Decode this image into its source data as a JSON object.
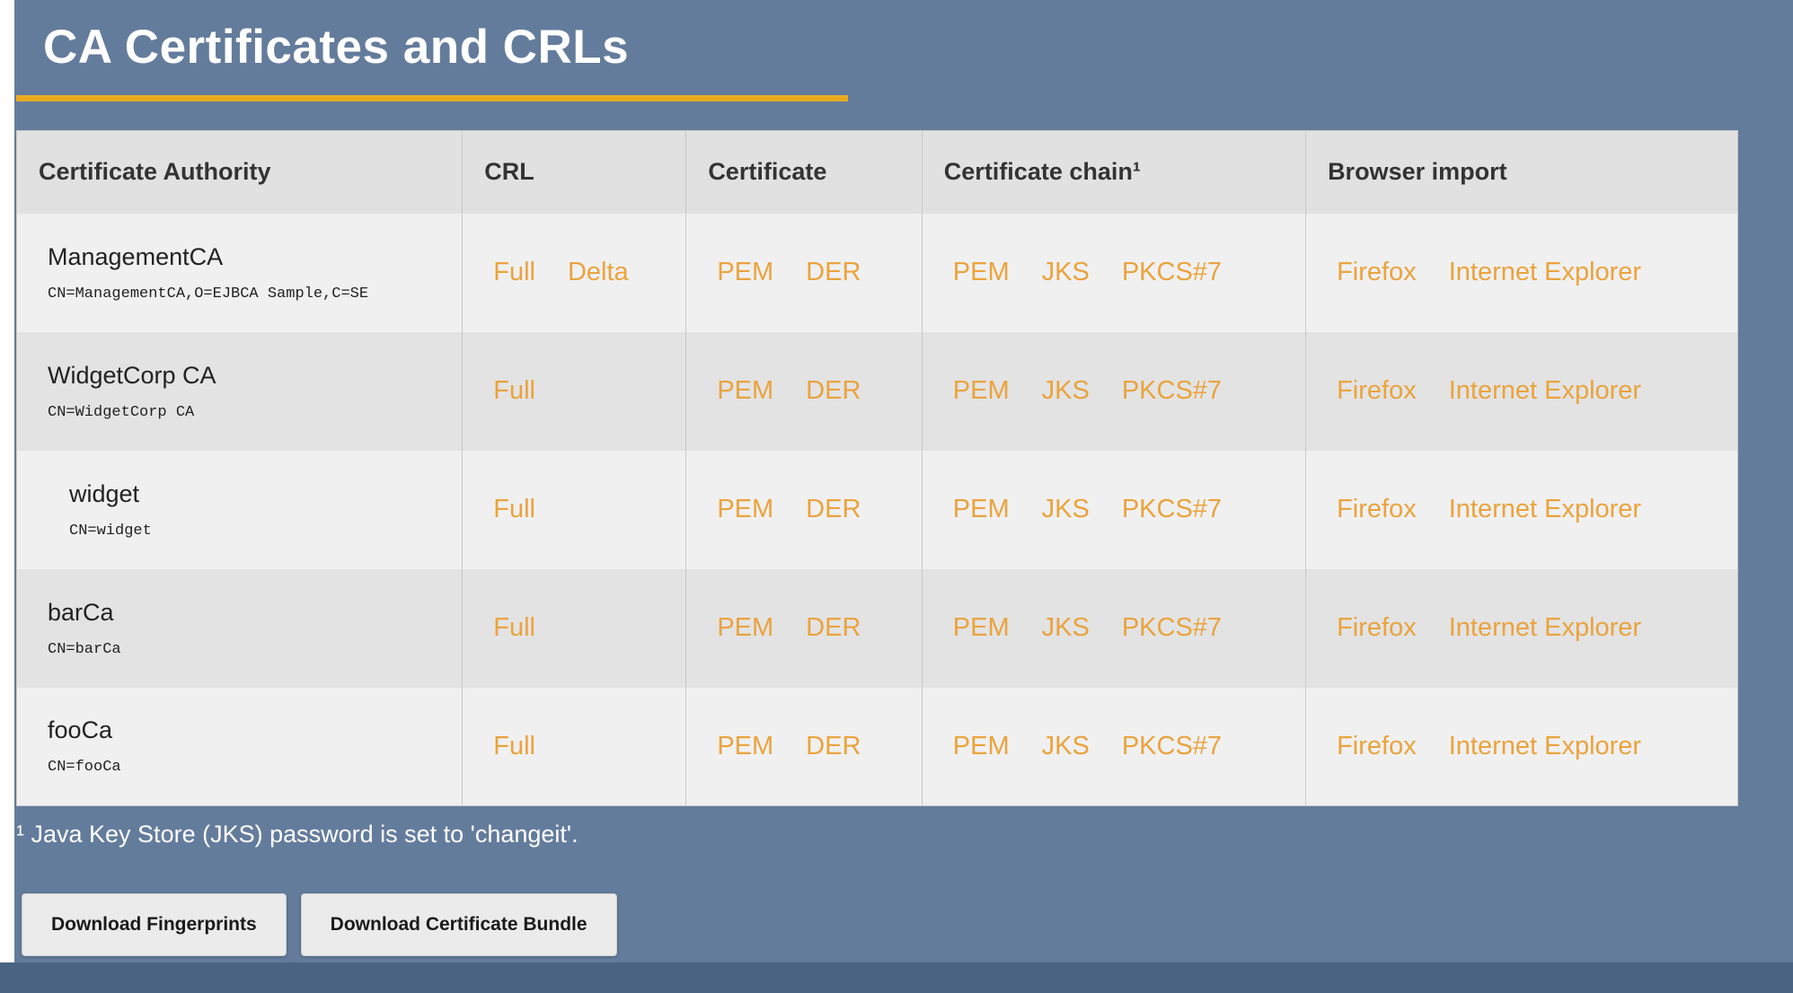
{
  "page": {
    "title": "CA Certificates and CRLs",
    "footnote": "¹ Java Key Store (JKS) password is set to 'changeit'.",
    "buttons": {
      "fingerprints": "Download Fingerprints",
      "bundle": "Download Certificate Bundle"
    }
  },
  "table": {
    "headers": [
      "Certificate Authority",
      "CRL",
      "Certificate",
      "Certificate chain¹",
      "Browser import"
    ],
    "rows": [
      {
        "name": "ManagementCA",
        "dn": "CN=ManagementCA,O=EJBCA Sample,C=SE",
        "indent": false,
        "crl": [
          "Full",
          "Delta"
        ],
        "certificate": [
          "PEM",
          "DER"
        ],
        "chain": [
          "PEM",
          "JKS",
          "PKCS#7"
        ],
        "browser": [
          "Firefox",
          "Internet Explorer"
        ]
      },
      {
        "name": "WidgetCorp CA",
        "dn": "CN=WidgetCorp CA",
        "indent": false,
        "crl": [
          "Full"
        ],
        "certificate": [
          "PEM",
          "DER"
        ],
        "chain": [
          "PEM",
          "JKS",
          "PKCS#7"
        ],
        "browser": [
          "Firefox",
          "Internet Explorer"
        ]
      },
      {
        "name": "widget",
        "dn": "CN=widget",
        "indent": true,
        "crl": [
          "Full"
        ],
        "certificate": [
          "PEM",
          "DER"
        ],
        "chain": [
          "PEM",
          "JKS",
          "PKCS#7"
        ],
        "browser": [
          "Firefox",
          "Internet Explorer"
        ]
      },
      {
        "name": "barCa",
        "dn": "CN=barCa",
        "indent": false,
        "crl": [
          "Full"
        ],
        "certificate": [
          "PEM",
          "DER"
        ],
        "chain": [
          "PEM",
          "JKS",
          "PKCS#7"
        ],
        "browser": [
          "Firefox",
          "Internet Explorer"
        ]
      },
      {
        "name": "fooCa",
        "dn": "CN=fooCa",
        "indent": false,
        "crl": [
          "Full"
        ],
        "certificate": [
          "PEM",
          "DER"
        ],
        "chain": [
          "PEM",
          "JKS",
          "PKCS#7"
        ],
        "browser": [
          "Firefox",
          "Internet Explorer"
        ]
      }
    ]
  },
  "colors": {
    "background": "#647c9c",
    "footer_bar": "#4a6382",
    "accent_underline": "#e8ab20",
    "link": "#eaa33d",
    "header_row_bg": "#e1e1e1",
    "row_odd_bg": "#f0f0f0",
    "row_even_bg": "#e3e3e3"
  }
}
